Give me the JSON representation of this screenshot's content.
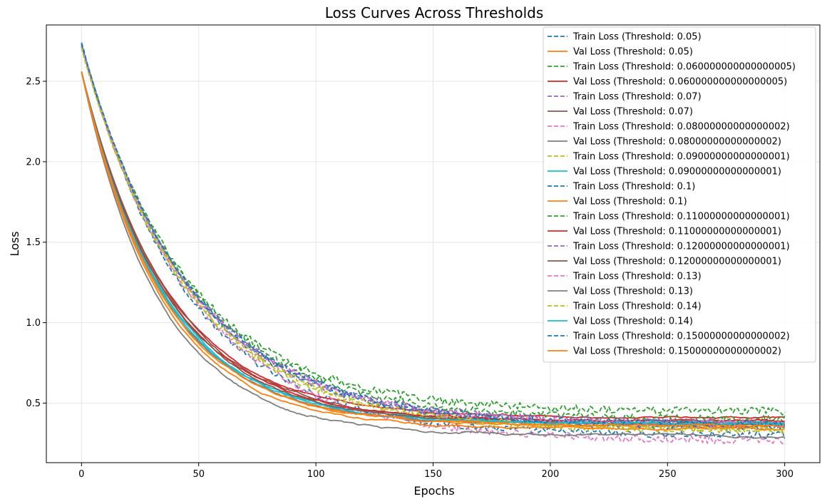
{
  "chart_data": {
    "type": "line",
    "title": "Loss Curves Across Thresholds",
    "xlabel": "Epochs",
    "ylabel": "Loss",
    "xlim": [
      -15,
      315
    ],
    "ylim": [
      0.13,
      2.85
    ],
    "x_ticks": [
      0,
      50,
      100,
      150,
      200,
      250,
      300
    ],
    "x_tick_labels": [
      "0",
      "50",
      "100",
      "150",
      "200",
      "250",
      "300"
    ],
    "y_ticks": [
      0.5,
      1.0,
      1.5,
      2.0,
      2.5
    ],
    "y_tick_labels": [
      "0.5",
      "1.0",
      "1.5",
      "2.0",
      "2.5"
    ],
    "grid": true,
    "legend_position": "upper-right",
    "epochs": {
      "start": 0,
      "end": 300
    },
    "series": [
      {
        "name": "Train Loss (Threshold: 0.05)",
        "color": "#1f77b4",
        "dash": true,
        "y0": 2.74,
        "y300": 0.3,
        "k": 0.0225,
        "noise": 0.022
      },
      {
        "name": "Val Loss (Threshold: 0.05)",
        "color": "#ff7f0e",
        "dash": false,
        "y0": 2.56,
        "y300": 0.36,
        "k": 0.029,
        "noise": 0.006
      },
      {
        "name": "Train Loss (Threshold: 0.060000000000000005)",
        "color": "#2ca02c",
        "dash": true,
        "y0": 2.72,
        "y300": 0.45,
        "k": 0.0225,
        "noise": 0.024
      },
      {
        "name": "Val Loss (Threshold: 0.060000000000000005)",
        "color": "#d62728",
        "dash": false,
        "y0": 2.56,
        "y300": 0.41,
        "k": 0.0275,
        "noise": 0.006
      },
      {
        "name": "Train Loss (Threshold: 0.07)",
        "color": "#9467bd",
        "dash": true,
        "y0": 2.73,
        "y300": 0.36,
        "k": 0.022,
        "noise": 0.02
      },
      {
        "name": "Val Loss (Threshold: 0.07)",
        "color": "#8c564b",
        "dash": false,
        "y0": 2.56,
        "y300": 0.38,
        "k": 0.027,
        "noise": 0.006
      },
      {
        "name": "Train Loss (Threshold: 0.08000000000000002)",
        "color": "#e377c2",
        "dash": true,
        "y0": 2.72,
        "y300": 0.27,
        "k": 0.0215,
        "noise": 0.024
      },
      {
        "name": "Val Loss (Threshold: 0.08000000000000002)",
        "color": "#7f7f7f",
        "dash": false,
        "y0": 2.56,
        "y300": 0.3,
        "k": 0.03,
        "noise": 0.008
      },
      {
        "name": "Train Loss (Threshold: 0.09000000000000001)",
        "color": "#bcbd22",
        "dash": true,
        "y0": 2.71,
        "y300": 0.33,
        "k": 0.0222,
        "noise": 0.02
      },
      {
        "name": "Val Loss (Threshold: 0.09000000000000001)",
        "color": "#17becf",
        "dash": false,
        "y0": 2.56,
        "y300": 0.38,
        "k": 0.0285,
        "noise": 0.007
      },
      {
        "name": "Train Loss (Threshold: 0.1)",
        "color": "#1f77b4",
        "dash": true,
        "y0": 2.72,
        "y300": 0.35,
        "k": 0.0218,
        "noise": 0.02
      },
      {
        "name": "Val Loss (Threshold: 0.1)",
        "color": "#ff7f0e",
        "dash": false,
        "y0": 2.56,
        "y300": 0.34,
        "k": 0.0295,
        "noise": 0.006
      },
      {
        "name": "Train Loss (Threshold: 0.11000000000000001)",
        "color": "#2ca02c",
        "dash": true,
        "y0": 2.72,
        "y300": 0.4,
        "k": 0.022,
        "noise": 0.022
      },
      {
        "name": "Val Loss (Threshold: 0.11000000000000001)",
        "color": "#d62728",
        "dash": false,
        "y0": 2.56,
        "y300": 0.39,
        "k": 0.028,
        "noise": 0.006
      },
      {
        "name": "Train Loss (Threshold: 0.12000000000000001)",
        "color": "#9467bd",
        "dash": true,
        "y0": 2.72,
        "y300": 0.38,
        "k": 0.022,
        "noise": 0.02
      },
      {
        "name": "Val Loss (Threshold: 0.12000000000000001)",
        "color": "#8c564b",
        "dash": false,
        "y0": 2.56,
        "y300": 0.37,
        "k": 0.0275,
        "noise": 0.006
      },
      {
        "name": "Train Loss (Threshold: 0.13)",
        "color": "#e377c2",
        "dash": true,
        "y0": 2.72,
        "y300": 0.37,
        "k": 0.0222,
        "noise": 0.022
      },
      {
        "name": "Val Loss (Threshold: 0.13)",
        "color": "#7f7f7f",
        "dash": false,
        "y0": 2.56,
        "y300": 0.37,
        "k": 0.029,
        "noise": 0.006
      },
      {
        "name": "Train Loss (Threshold: 0.14)",
        "color": "#bcbd22",
        "dash": true,
        "y0": 2.71,
        "y300": 0.34,
        "k": 0.022,
        "noise": 0.02
      },
      {
        "name": "Val Loss (Threshold: 0.14)",
        "color": "#17becf",
        "dash": false,
        "y0": 2.56,
        "y300": 0.37,
        "k": 0.0285,
        "noise": 0.006
      },
      {
        "name": "Train Loss (Threshold: 0.15000000000000002)",
        "color": "#1f77b4",
        "dash": true,
        "y0": 2.73,
        "y300": 0.37,
        "k": 0.022,
        "noise": 0.02
      },
      {
        "name": "Val Loss (Threshold: 0.15000000000000002)",
        "color": "#ff7f0e",
        "dash": false,
        "y0": 2.56,
        "y300": 0.36,
        "k": 0.029,
        "noise": 0.006
      }
    ]
  }
}
